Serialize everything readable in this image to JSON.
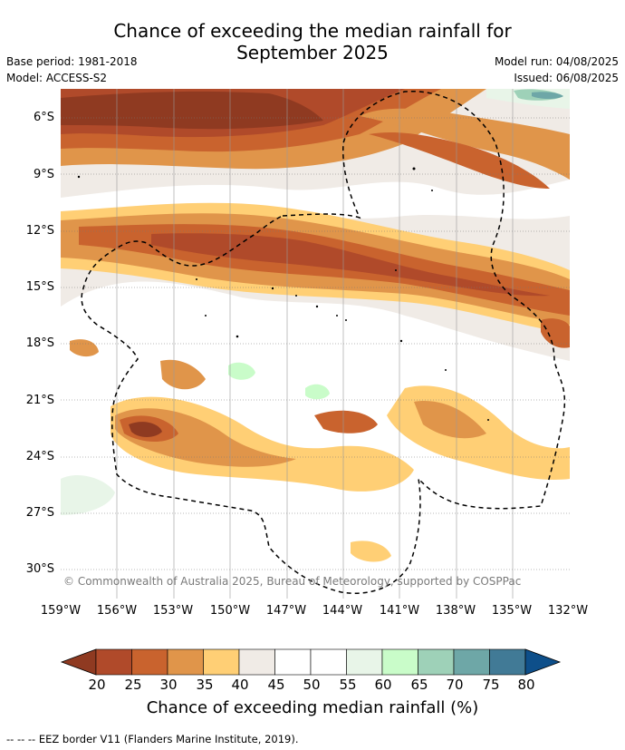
{
  "title_line1": "Chance of exceeding the median rainfall for",
  "title_line2": "September 2025",
  "meta": {
    "base_period": "Base period: 1981-2018",
    "model": "Model: ACCESS-S2",
    "model_run": "Model run: 04/08/2025",
    "issued": "Issued: 06/08/2025"
  },
  "copyright": "© Commonwealth of Australia 2025, Bureau of Meteorology, supported by COSPPac",
  "lat_labels": [
    "6°S",
    "9°S",
    "12°S",
    "15°S",
    "18°S",
    "21°S",
    "24°S",
    "27°S",
    "30°S"
  ],
  "lon_labels": [
    "159°W",
    "156°W",
    "153°W",
    "150°W",
    "147°W",
    "144°W",
    "141°W",
    "138°W",
    "135°W",
    "132°W"
  ],
  "colorbar": {
    "ticks": [
      "20",
      "25",
      "30",
      "35",
      "40",
      "45",
      "50",
      "55",
      "60",
      "65",
      "70",
      "75",
      "80"
    ],
    "colors": [
      "#8f3a21",
      "#b04a2a",
      "#c9632e",
      "#e0954a",
      "#ffcf75",
      "#f0ebe6",
      "#ffffff",
      "#ffffff",
      "#e8f5e8",
      "#c9fcc9",
      "#9ed1b8",
      "#6ea7a7",
      "#417a96",
      "#0e4f8a"
    ],
    "label": "Chance of exceeding median rainfall (%)"
  },
  "legend_footer": "--  --  -- EEZ border V11 (Flanders Marine Institute, 2019)."
}
